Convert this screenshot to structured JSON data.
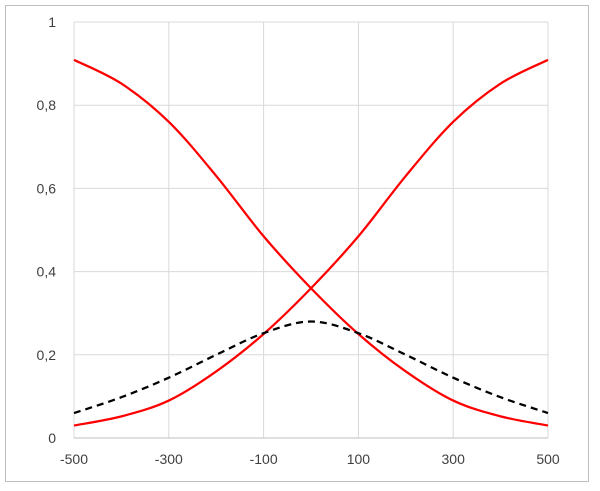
{
  "chart_data": {
    "type": "line",
    "title": "",
    "xlabel": "",
    "ylabel": "",
    "xlim": [
      -500,
      500
    ],
    "ylim": [
      0,
      1
    ],
    "x_ticks": [
      -500,
      -300,
      -100,
      100,
      300,
      500
    ],
    "x_tick_labels": [
      "-500",
      "-300",
      "-100",
      "100",
      "300",
      "500"
    ],
    "y_ticks": [
      0,
      0.2,
      0.4,
      0.6,
      0.8,
      1
    ],
    "y_tick_labels": [
      "0",
      "0,2",
      "0,4",
      "0,6",
      "0,8",
      "1"
    ],
    "grid": true,
    "legend": "none",
    "series": [
      {
        "color": "#ff0000",
        "dash": "solid",
        "x": [
          -500,
          -400,
          -300,
          -200,
          -100,
          0,
          100,
          200,
          300,
          400,
          500
        ],
        "y": [
          0.909,
          0.852,
          0.76,
          0.63,
          0.485,
          0.36,
          0.25,
          0.16,
          0.09,
          0.052,
          0.03
        ]
      },
      {
        "color": "#ff0000",
        "dash": "solid",
        "x": [
          -500,
          -400,
          -300,
          -200,
          -100,
          0,
          100,
          200,
          300,
          400,
          500
        ],
        "y": [
          0.03,
          0.052,
          0.09,
          0.16,
          0.25,
          0.36,
          0.485,
          0.63,
          0.76,
          0.852,
          0.909
        ]
      },
      {
        "color": "#000000",
        "dash": "dashed",
        "x": [
          -500,
          -400,
          -300,
          -200,
          -100,
          0,
          100,
          200,
          300,
          400,
          500
        ],
        "y": [
          0.06,
          0.098,
          0.145,
          0.2,
          0.252,
          0.28,
          0.252,
          0.2,
          0.145,
          0.098,
          0.06
        ]
      }
    ]
  }
}
